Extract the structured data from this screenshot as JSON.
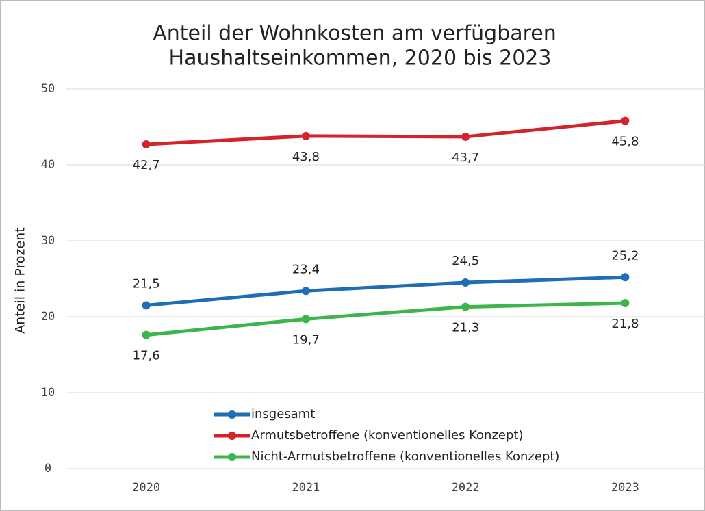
{
  "chart_data": {
    "type": "line",
    "title": [
      "Anteil der Wohnkosten am verfügbaren",
      "Haushaltseinkommen, 2020 bis 2023"
    ],
    "y_label": "Anteil in Prozent",
    "categories": [
      "2020",
      "2021",
      "2022",
      "2023"
    ],
    "series": [
      {
        "name": "insgesamt",
        "color": "#1f6db5",
        "values": [
          21.5,
          23.4,
          24.5,
          25.2
        ],
        "value_labels": [
          "21,5",
          "23,4",
          "24,5",
          "25,2"
        ],
        "label_position": "above"
      },
      {
        "name": "Armutsbetroffene (konventionelles Konzept)",
        "color": "#d3242b",
        "values": [
          42.7,
          43.8,
          43.7,
          45.8
        ],
        "value_labels": [
          "42,7",
          "43,8",
          "43,7",
          "45,8"
        ],
        "label_position": "below"
      },
      {
        "name": "Nicht-Armutsbetroffene (konventionelles Konzept)",
        "color": "#3cb54a",
        "values": [
          17.6,
          19.7,
          21.3,
          21.8
        ],
        "value_labels": [
          "17,6",
          "19,7",
          "21,3",
          "21,8"
        ],
        "label_position": "below"
      }
    ],
    "ylim": [
      0,
      50
    ],
    "yticks": [
      0,
      10,
      20,
      30,
      40,
      50
    ],
    "grid": true
  }
}
